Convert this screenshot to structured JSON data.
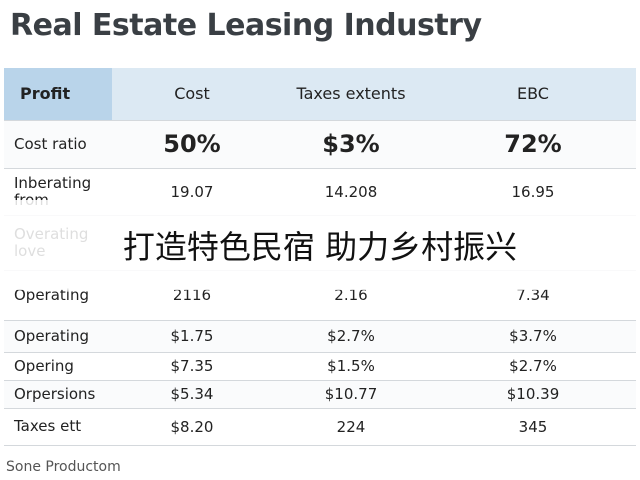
{
  "title": "Real Estate Leasing Industry",
  "table": {
    "header": [
      "Profit",
      "Cost",
      "Taxes extents",
      "EBC"
    ],
    "rows": [
      [
        "Cost ratio",
        "50%",
        "$3%",
        "72%"
      ],
      [
        "Inberating from",
        "19.07",
        "14.208",
        "16.95"
      ],
      [
        "Overating love"
      ],
      [
        "Operating",
        "2116",
        "2.16",
        "7.34"
      ],
      [
        "Operating",
        "$1.75",
        "$2.7%",
        "$3.7%"
      ],
      [
        "Opering",
        "$7.35",
        "$1.5%",
        "$2.7%"
      ],
      [
        "Orpersions",
        "$5.34",
        "$10.77",
        "$10.39"
      ],
      [
        "Taxes ett",
        "$8.20",
        "224",
        "345"
      ]
    ]
  },
  "banner": "打造特色民宿 助力乡村振兴",
  "footer": "Sone Productom"
}
